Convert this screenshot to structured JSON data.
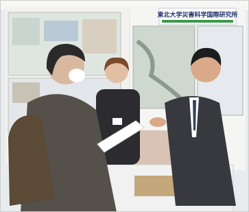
{
  "sign": {
    "text": "東北大学災害科学国際研究所"
  }
}
